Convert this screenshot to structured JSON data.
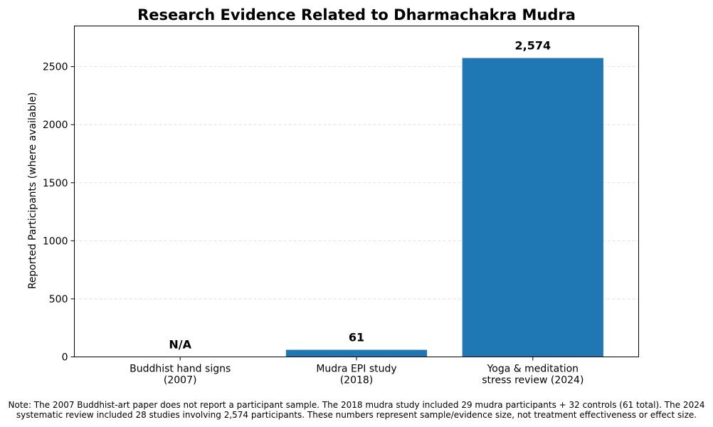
{
  "chart_data": {
    "type": "bar",
    "title": "Research Evidence Related to Dharmachakra Mudra",
    "xlabel": "",
    "ylabel": "Reported Participants (where available)",
    "categories": [
      [
        "Buddhist hand signs",
        "(2007)"
      ],
      [
        "Mudra EPI study",
        "(2018)"
      ],
      [
        "Yoga & meditation",
        "stress review (2024)"
      ]
    ],
    "values": [
      null,
      61,
      2574
    ],
    "data_labels": [
      "N/A",
      "61",
      "2,574"
    ],
    "ylim": [
      0,
      2850
    ],
    "yticks": [
      0,
      500,
      1000,
      1500,
      2000,
      2500
    ],
    "grid": "y-dashed",
    "bar_color": "#1f77b4"
  },
  "note": {
    "line1": "Note: The 2007 Buddhist-art paper does not report a participant sample. The 2018 mudra study included 29 mudra participants + 32 controls (61 total). The 2024",
    "line2": "systematic review included 28 studies involving 2,574 participants. These numbers represent sample/evidence size, not treatment effectiveness or effect size."
  }
}
